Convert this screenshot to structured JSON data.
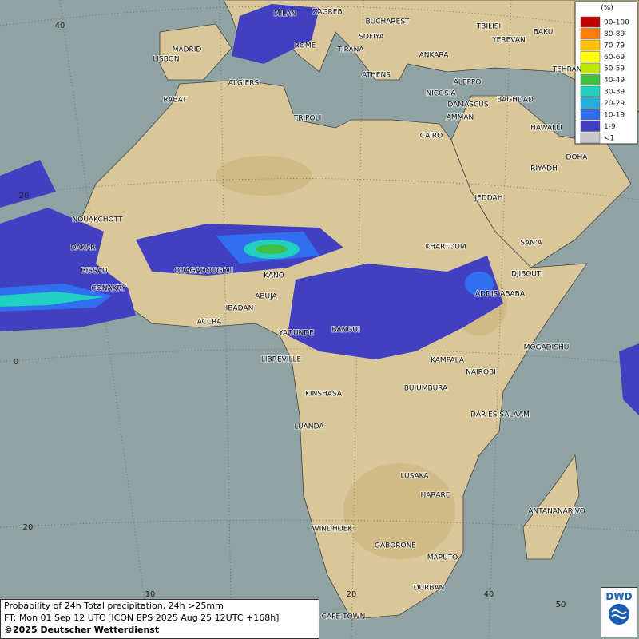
{
  "legend": {
    "title": "(%)",
    "items": [
      {
        "label": "90-100",
        "color": "#c00000"
      },
      {
        "label": "80-89",
        "color": "#ff7f00"
      },
      {
        "label": "70-79",
        "color": "#ffbf00"
      },
      {
        "label": "60-69",
        "color": "#ffff00"
      },
      {
        "label": "50-59",
        "color": "#bfe600"
      },
      {
        "label": "40-49",
        "color": "#40c040"
      },
      {
        "label": "30-39",
        "color": "#20d0c0"
      },
      {
        "label": "20-29",
        "color": "#20b0e0"
      },
      {
        "label": "10-19",
        "color": "#3070f0"
      },
      {
        "label": "1-9",
        "color": "#4040c0"
      },
      {
        "label": "<1",
        "color": "#c8c8c8"
      }
    ]
  },
  "grid_labels": {
    "lat": [
      "40",
      "20",
      "0",
      "20"
    ],
    "lon": [
      "10",
      "20",
      "40",
      "50"
    ]
  },
  "cities": [
    "MILAN",
    "ZAGREB",
    "BUCHAREST",
    "TBILISI",
    "BAKU",
    "MADRID",
    "ROME",
    "SOFIYA",
    "YEREVAN",
    "LISBON",
    "TIRANA",
    "ANKARA",
    "TEHRAN",
    "ALGIERS",
    "ATHENS",
    "ALEPPO",
    "RABAT",
    "NICOSIA",
    "BAGHDAD",
    "DAMASCUS",
    "TRIPOLI",
    "AMMAN",
    "HAWALLI",
    "CAIRO",
    "DOHA",
    "RIYADH",
    "JEDDAH",
    "NOUAKCHOTT",
    "SAN'A",
    "DAKAR",
    "KHARTOUM",
    "BISSAU",
    "OUAGADOUGOU",
    "KANO",
    "DJIBOUTI",
    "CONAKRY",
    "ABUJA",
    "ADDIS ABABA",
    "IBADAN",
    "ACCRA",
    "YAOUNDE",
    "BANGUI",
    "MOGADISHU",
    "LIBREVILLE",
    "KAMPALA",
    "NAIROBI",
    "KINSHASA",
    "BUJUMBURA",
    "DAR ES SALAAM",
    "LUANDA",
    "LUSAKA",
    "HARARE",
    "ANTANANARIVO",
    "WINDHOEK",
    "GABORONE",
    "MAPUTO",
    "DURBAN",
    "CAPE TOWN"
  ],
  "footer": {
    "line1": "Probability of 24h Total precipitation, 24h >25mm",
    "line2": "FT: Mon 01 Sep 12 UTC [ICON EPS 2025 Aug 25 12UTC +168h]",
    "copyright": "©2025 Deutscher Wetterdienst"
  },
  "logo": "DWD"
}
